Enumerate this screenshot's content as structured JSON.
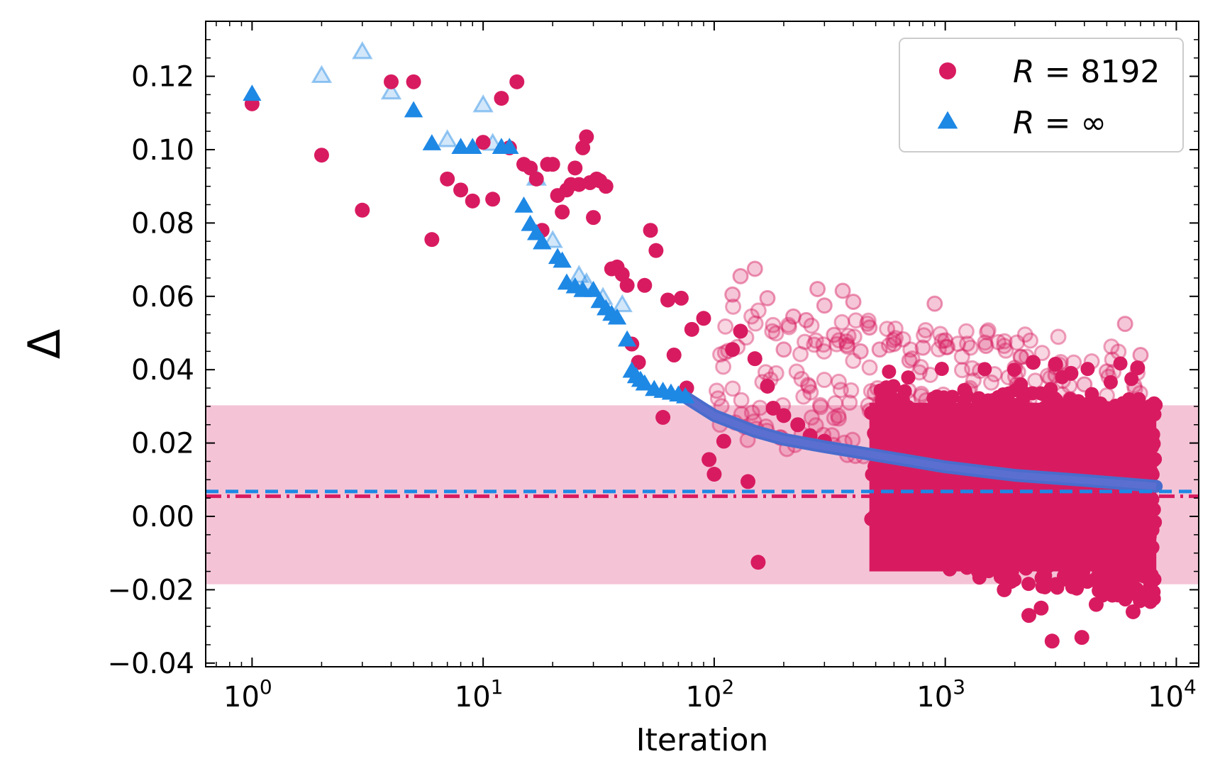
{
  "chart_data": {
    "type": "scatter",
    "xlabel": "Iteration",
    "ylabel": "Δ",
    "xscale": "log",
    "xlim": [
      0.63,
      12500
    ],
    "ylim": [
      -0.041,
      0.135
    ],
    "x_ticks": [
      {
        "value": 1,
        "base": "10",
        "exp": "0"
      },
      {
        "value": 10,
        "base": "10",
        "exp": "1"
      },
      {
        "value": 100,
        "base": "10",
        "exp": "2"
      },
      {
        "value": 1000,
        "base": "10",
        "exp": "3"
      },
      {
        "value": 10000,
        "base": "10",
        "exp": "4"
      }
    ],
    "y_ticks": [
      {
        "value": 0.12,
        "label": "0.12"
      },
      {
        "value": 0.1,
        "label": "0.10"
      },
      {
        "value": 0.08,
        "label": "0.08"
      },
      {
        "value": 0.06,
        "label": "0.06"
      },
      {
        "value": 0.04,
        "label": "0.04"
      },
      {
        "value": 0.02,
        "label": "0.02"
      },
      {
        "value": 0.0,
        "label": "0.00"
      },
      {
        "value": -0.02,
        "label": "−0.02"
      },
      {
        "value": -0.04,
        "label": "−0.04"
      }
    ],
    "legend_position": "top-right",
    "shaded_band": {
      "y_min": -0.0185,
      "y_max": 0.0303,
      "color": "#f4c4d6"
    },
    "reference_lines": [
      {
        "y": 0.0055,
        "style": "dash-dot",
        "color": "#d81b60"
      },
      {
        "y": 0.0068,
        "style": "dashed",
        "color": "#1e88e5"
      }
    ],
    "series": [
      {
        "name": "R = 8192",
        "name_parts": {
          "var": "R",
          "eq": " = ",
          "val": "8192"
        },
        "marker": "circle",
        "color": "#d81b60",
        "points": [
          [
            1,
            0.1125
          ],
          [
            2,
            0.0985
          ],
          [
            3,
            0.0835
          ],
          [
            4,
            0.1185
          ],
          [
            5,
            0.1185
          ],
          [
            6,
            0.0755
          ],
          [
            7,
            0.092
          ],
          [
            8,
            0.089
          ],
          [
            9,
            0.086
          ],
          [
            10,
            0.102
          ],
          [
            11,
            0.0865
          ],
          [
            12,
            0.114
          ],
          [
            13,
            0.1005
          ],
          [
            14,
            0.1185
          ],
          [
            15,
            0.096
          ],
          [
            16,
            0.095
          ],
          [
            17,
            0.092
          ],
          [
            18,
            0.078
          ],
          [
            19,
            0.096
          ],
          [
            20,
            0.096
          ],
          [
            21,
            0.0875
          ],
          [
            22,
            0.083
          ],
          [
            23,
            0.089
          ],
          [
            24,
            0.0905
          ],
          [
            25,
            0.095
          ],
          [
            26,
            0.0905
          ],
          [
            27,
            0.1005
          ],
          [
            28,
            0.1035
          ],
          [
            29,
            0.091
          ],
          [
            30,
            0.0815
          ],
          [
            31,
            0.092
          ],
          [
            32,
            0.0915
          ],
          [
            34,
            0.09
          ],
          [
            36,
            0.0675
          ],
          [
            38,
            0.068
          ],
          [
            40,
            0.066
          ],
          [
            42,
            0.063
          ],
          [
            44,
            0.047
          ],
          [
            47,
            0.042
          ],
          [
            50,
            0.063
          ],
          [
            53,
            0.078
          ],
          [
            56,
            0.0725
          ],
          [
            60,
            0.027
          ],
          [
            63,
            0.059
          ],
          [
            67,
            0.044
          ],
          [
            72,
            0.0595
          ],
          [
            76,
            0.035
          ],
          [
            80,
            0.051
          ],
          [
            90,
            0.054
          ],
          [
            95,
            0.0155
          ],
          [
            100,
            0.0115
          ],
          [
            110,
            0.0205
          ],
          [
            120,
            0.0455
          ],
          [
            130,
            0.0505
          ],
          [
            140,
            0.0095
          ],
          [
            150,
            0.043
          ],
          [
            155,
            -0.0125
          ],
          [
            170,
            0.0355
          ],
          [
            180,
            0.0295
          ],
          [
            200,
            0.0275
          ],
          [
            230,
            0.025
          ],
          [
            260,
            0.022
          ],
          [
            300,
            0.0205
          ]
        ],
        "faded_points": [
          [
            120,
            0.0605
          ],
          [
            130,
            0.0655
          ],
          [
            150,
            0.0675
          ],
          [
            170,
            0.0595
          ],
          [
            200,
            0.0455
          ],
          [
            220,
            0.0545
          ],
          [
            250,
            0.0535
          ],
          [
            280,
            0.062
          ],
          [
            300,
            0.0575
          ],
          [
            330,
            0.0495
          ],
          [
            360,
            0.0615
          ],
          [
            400,
            0.0585
          ],
          [
            430,
            0.045
          ],
          [
            470,
            0.0515
          ],
          [
            520,
            0.0455
          ],
          [
            600,
            0.047
          ],
          [
            700,
            0.0425
          ],
          [
            800,
            0.046
          ],
          [
            900,
            0.058
          ],
          [
            1000,
            0.048
          ],
          [
            1500,
            0.0465
          ],
          [
            2000,
            0.0405
          ],
          [
            3000,
            0.0385
          ],
          [
            4000,
            0.036
          ],
          [
            5000,
            0.0395
          ],
          [
            6000,
            0.0525
          ],
          [
            7000,
            0.044
          ]
        ],
        "dense_band": {
          "x_start": 450,
          "x_end": 8192,
          "y_min": -0.0265,
          "y_max": 0.0355
        }
      },
      {
        "name": "R = ∞",
        "name_parts": {
          "var": "R",
          "eq": " = ",
          "val": "∞"
        },
        "marker": "triangle",
        "color": "#1e88e5",
        "points": [
          [
            1,
            0.115
          ],
          [
            5,
            0.1105
          ],
          [
            6,
            0.1015
          ],
          [
            8,
            0.1005
          ],
          [
            9,
            0.1005
          ],
          [
            12,
            0.1005
          ],
          [
            13,
            0.1005
          ],
          [
            15,
            0.0845
          ],
          [
            16,
            0.0795
          ],
          [
            17,
            0.077
          ],
          [
            18,
            0.0745
          ],
          [
            21,
            0.0705
          ],
          [
            22,
            0.0695
          ],
          [
            23,
            0.0635
          ],
          [
            25,
            0.0625
          ],
          [
            27,
            0.0615
          ],
          [
            30,
            0.0615
          ],
          [
            32,
            0.0585
          ],
          [
            34,
            0.0565
          ],
          [
            36,
            0.055
          ],
          [
            38,
            0.054
          ],
          [
            42,
            0.048
          ],
          [
            44,
            0.0395
          ],
          [
            46,
            0.038
          ],
          [
            48,
            0.037
          ],
          [
            50,
            0.036
          ],
          [
            55,
            0.0345
          ],
          [
            60,
            0.034
          ],
          [
            65,
            0.0335
          ],
          [
            70,
            0.033
          ],
          [
            75,
            0.0325
          ]
        ],
        "faded_points": [
          [
            2,
            0.12
          ],
          [
            3,
            0.1265
          ],
          [
            4,
            0.1155
          ],
          [
            7,
            0.1025
          ],
          [
            10,
            0.112
          ],
          [
            11,
            0.1015
          ],
          [
            17,
            0.092
          ],
          [
            20,
            0.075
          ],
          [
            26,
            0.0655
          ],
          [
            28,
            0.0635
          ],
          [
            33,
            0.0595
          ],
          [
            40,
            0.0575
          ]
        ],
        "decay_curve": [
          [
            75,
            0.0325
          ],
          [
            100,
            0.0275
          ],
          [
            150,
            0.0232
          ],
          [
            200,
            0.021
          ],
          [
            300,
            0.019
          ],
          [
            500,
            0.0167
          ],
          [
            1000,
            0.0135
          ],
          [
            2000,
            0.0112
          ],
          [
            4000,
            0.0098
          ],
          [
            8192,
            0.0082
          ]
        ]
      }
    ]
  }
}
